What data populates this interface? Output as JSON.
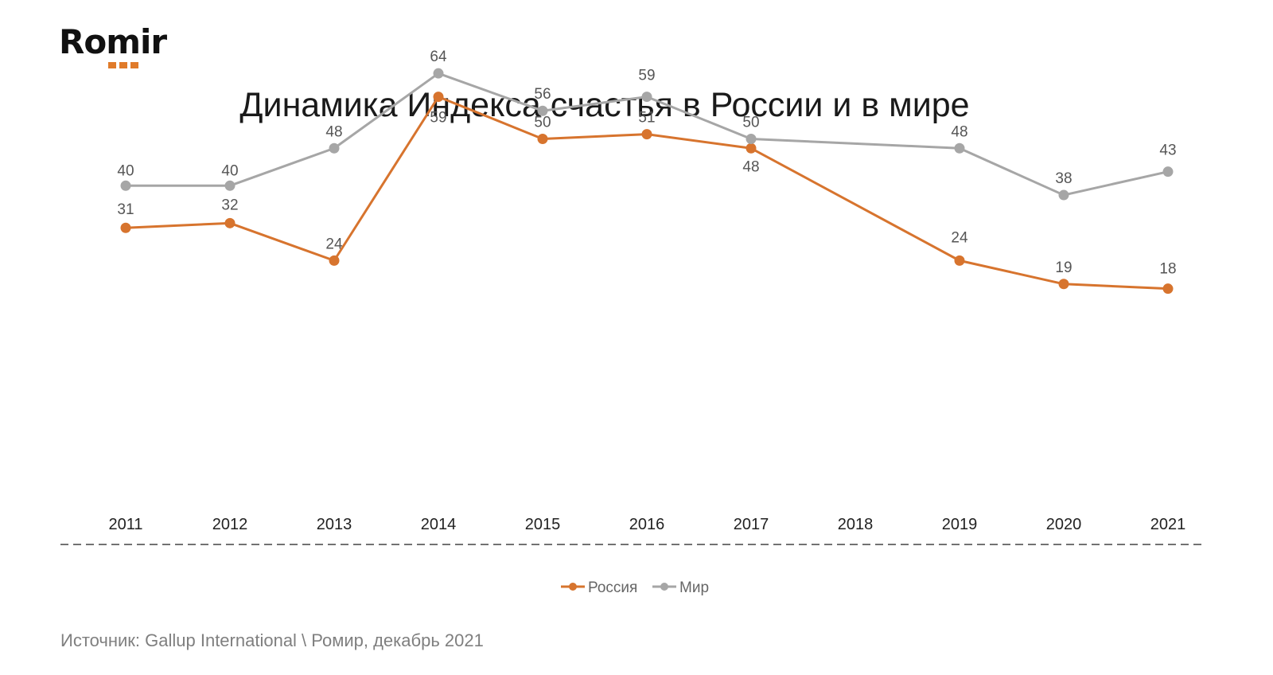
{
  "logo": {
    "text": "Romir"
  },
  "title": "Динамика Индекса счастья в России и в мире",
  "source": "Источник: Gallup International \\ Ромир, декабрь 2021",
  "colors": {
    "russia": "#d7742e",
    "world": "#a6a6a6",
    "accent": "#e07b2a"
  },
  "chart_data": {
    "type": "line",
    "title": "Динамика Индекса счастья в России и в мире",
    "x": [
      "2011",
      "2012",
      "2013",
      "2014",
      "2015",
      "2016",
      "2017",
      "2018",
      "2019",
      "2020",
      "2021"
    ],
    "series": [
      {
        "name": "Россия",
        "color": "#d7742e",
        "values": [
          31,
          32,
          24,
          59,
          50,
          51,
          48,
          null,
          24,
          19,
          18
        ]
      },
      {
        "name": "Мир",
        "color": "#a6a6a6",
        "values": [
          40,
          40,
          48,
          64,
          56,
          59,
          50,
          null,
          48,
          38,
          43
        ]
      }
    ],
    "legend_position": "bottom",
    "grid": false,
    "xlabel": "",
    "ylabel": ""
  }
}
